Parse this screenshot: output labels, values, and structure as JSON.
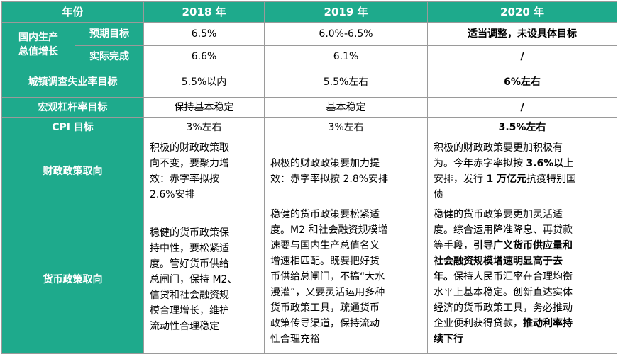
{
  "headers": [
    "年份",
    "2018 年",
    "2019 年",
    "2020 年"
  ],
  "gdp": {
    "label": "国内生产总值增长",
    "expected": {
      "label": "预期目标",
      "y2018": "6.5%",
      "y2019": "6.0%-6.5%",
      "y2020": "适当调整，未设具体目标"
    },
    "actual": {
      "label": "实际完成",
      "y2018": "6.6%",
      "y2019": "6.1%",
      "y2020": "/"
    }
  },
  "unemployment": {
    "label": "城镇调查失业率目标",
    "y2018": "5.5%以内",
    "y2019": "5.5%左右",
    "y2020": "6%左右"
  },
  "leverage": {
    "label": "宏观杠杆率目标",
    "y2018": "保持基本稳定",
    "y2019": "基本稳定",
    "y2020": "/"
  },
  "cpi": {
    "label": "CPI 目标",
    "y2018": "3%左右",
    "y2019": "3%左右",
    "y2020": "3.5%左右"
  },
  "fiscal": {
    "label": "财政政策取向",
    "y2018": [
      "积极的财政政策取",
      "向不变，要聚力增",
      "效：赤字率拟按",
      "2.6%安排"
    ],
    "y2019": [
      "积极的财政政策要加力提",
      "效：赤字率拟按 2.8%安排"
    ],
    "y2020": {
      "line1": "积极的财政政策要更加积极有",
      "line2a": "为。今年赤字率拟按 ",
      "line2b": "3.6%以上",
      "line3a": "安排，发行 ",
      "line3b": "1 万亿元",
      "line3c": "抗疫特别国",
      "line4": "债"
    }
  },
  "monetary": {
    "label": "货币政策取向",
    "y2018": [
      "稳健的货币政策保",
      "持中性，要松紧适",
      "度。管好货币供给",
      "总闸门，保持 M2、",
      "信贷和社会融资规",
      "模合理增长，维护",
      "流动性合理稳定"
    ],
    "y2019": [
      "稳健的货币政策要松紧适",
      "度。M2 和社会融资规模增",
      "速要与国内生产总值名义",
      "增速相匹配。既要把好货",
      "币供给总闸门，不搞“大水",
      "漫灌”，又要灵活运用多种",
      "货币政策工具，疏通货币",
      "政策传导渠道，保持流动",
      "性合理充裕"
    ],
    "y2020": {
      "l1": "稳健的货币政策要更加灵活适",
      "l2": "度。综合运用降准降息、再贷款",
      "l3a": "等手段，",
      "l3b": "引导广义货币供应量和",
      "l4b": "社会融资规模增速明显高于去",
      "l5b": "年。",
      "l5a": "保持人民币汇率在合理均衡",
      "l6": "水平上基本稳定。创新直达实体",
      "l7": "经济的货币政策工具，务必推动",
      "l8a": "企业便利获得贷款，",
      "l8b": "推动利率持",
      "l9b": "续下行"
    }
  },
  "colors": {
    "header_bg": "#1eaa8c",
    "header_text": "#ffffff",
    "border": "#9a9a9a"
  }
}
